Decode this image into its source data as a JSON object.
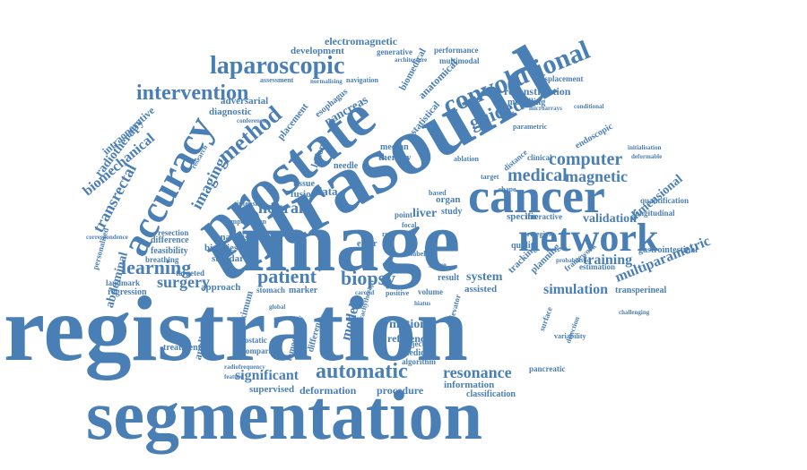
{
  "color": "#4a7fb5",
  "words": [
    "registration",
    "segmentation",
    "ultrasound",
    "image",
    "prostate",
    "cancer",
    "network",
    "accuracy",
    "convolutional",
    "laparoscopic",
    "intervention",
    "method",
    "learning",
    "patient",
    "biopsy",
    "automatic",
    "resonance",
    "significant",
    "neural",
    "guided",
    "medical",
    "computer",
    "magnetic",
    "surgery",
    "imaging",
    "transrectal",
    "biomechanical",
    "radiotherapy",
    "intraoperative",
    "abdominal",
    "multiparametric",
    "training",
    "simulation",
    "validation",
    "dimensional",
    "system",
    "motion",
    "model",
    "reference",
    "deformation",
    "procedure",
    "information",
    "classification",
    "supervised",
    "electromagnetic",
    "development",
    "generative",
    "performance",
    "multimodal",
    "anatomical",
    "biomedical",
    "reconstruction",
    "displacement",
    "modelling",
    "endoscopic",
    "adversarial",
    "diagnostic",
    "pancreas",
    "esophagus",
    "placement",
    "statistical",
    "therapy",
    "median",
    "lesion",
    "needle",
    "fusion",
    "tissue",
    "data",
    "liver",
    "organ",
    "study",
    "specific",
    "quality",
    "longitudinal",
    "quantification",
    "gastrointestinal",
    "estimation",
    "framework",
    "transperineal",
    "assisted",
    "planning",
    "tracking",
    "result",
    "error",
    "score",
    "volume",
    "analysis",
    "biopsies",
    "standard",
    "approach",
    "marker",
    "stomach",
    "difference",
    "feasibility",
    "targeted",
    "personalised",
    "resection",
    "breathing",
    "landmark",
    "regression",
    "application",
    "treatment",
    "maximum",
    "prostatic",
    "comparison",
    "tomography",
    "subject",
    "medicine",
    "algorithm",
    "pancreatic",
    "different",
    "interactive",
    "assessment",
    "navigation",
    "normalising",
    "conference",
    "research",
    "real",
    "focal",
    "point",
    "label",
    "based",
    "shape",
    "target",
    "ablation",
    "clinical",
    "distance",
    "parametric",
    "variability",
    "surface",
    "intensity",
    "compensation",
    "correspondence",
    "initialisation",
    "deformable",
    "microarrays",
    "conditional",
    "architecture",
    "detection",
    "strategies",
    "probabilistic",
    "challenging",
    "global",
    "positive",
    "brachytherapy",
    "radiofrequency",
    "feature",
    "levator",
    "probe",
    "carotid",
    "hiatus"
  ]
}
